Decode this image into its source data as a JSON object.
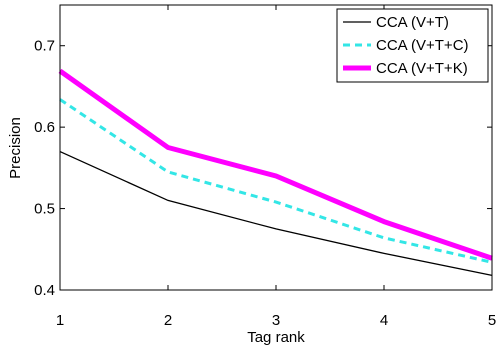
{
  "chart_data": {
    "type": "line",
    "xlabel": "Tag rank",
    "ylabel": "Precision",
    "xlim": [
      1,
      5
    ],
    "ylim": [
      0.4,
      0.75
    ],
    "x": [
      1,
      2,
      3,
      4,
      5
    ],
    "xticks": [
      "1",
      "2",
      "3",
      "4",
      "5"
    ],
    "yticks": [
      {
        "value": 0.4,
        "label": "0.4"
      },
      {
        "value": 0.5,
        "label": "0.5"
      },
      {
        "value": 0.6,
        "label": "0.6"
      },
      {
        "value": 0.7,
        "label": "0.7"
      }
    ],
    "grid": false,
    "legend_position": "top-right",
    "series": [
      {
        "name": "CCA (V+T)",
        "values": [
          0.57,
          0.51,
          0.475,
          0.445,
          0.418
        ],
        "color": "#000000",
        "style": "solid"
      },
      {
        "name": "CCA (V+T+C)",
        "values": [
          0.634,
          0.545,
          0.508,
          0.464,
          0.434
        ],
        "color": "#33e6e6",
        "style": "dashed"
      },
      {
        "name": "CCA (V+T+K)",
        "values": [
          0.669,
          0.575,
          0.54,
          0.484,
          0.439
        ],
        "color": "#ff00ff",
        "style": "thick"
      }
    ]
  }
}
